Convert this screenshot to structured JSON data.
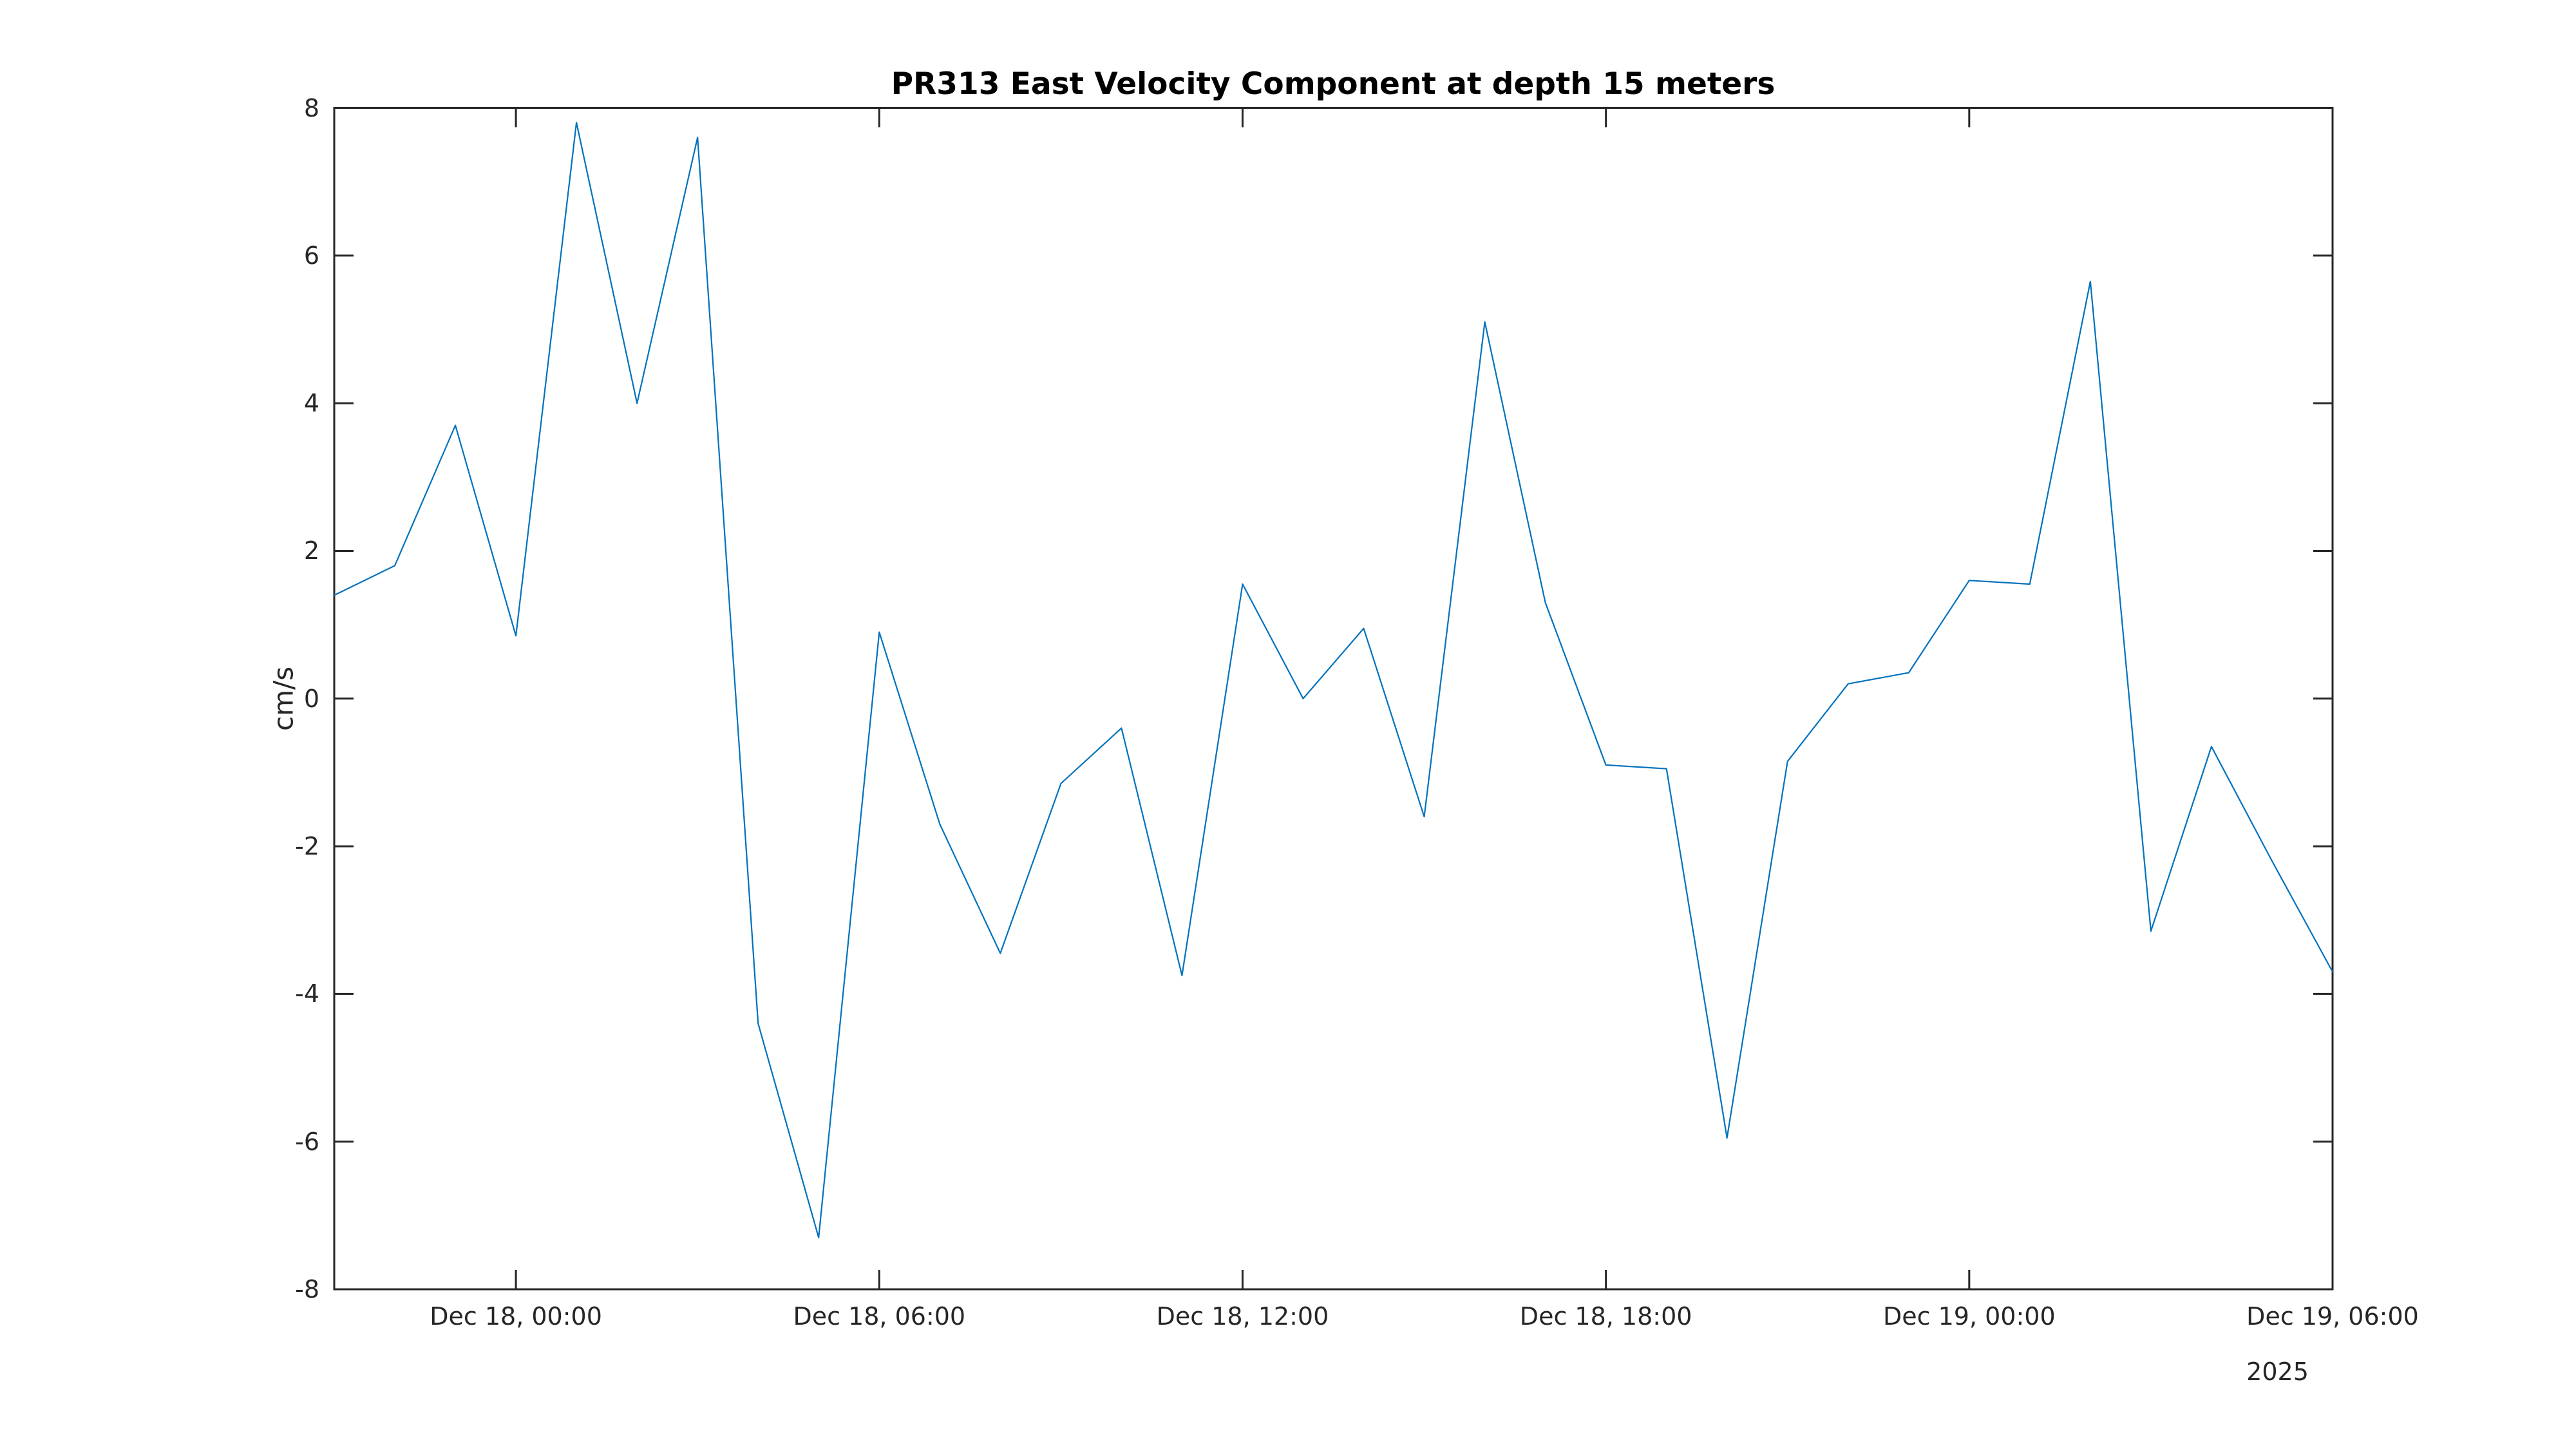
{
  "chart_data": {
    "type": "line",
    "title": "PR313 East Velocity Component at depth 15 meters",
    "ylabel": "cm/s",
    "ylim": [
      -8,
      8
    ],
    "yticks": [
      8,
      6,
      4,
      2,
      0,
      -2,
      -4,
      -6,
      -8
    ],
    "ytick_labels": [
      "8",
      "6",
      "4",
      "2",
      "0",
      "-2",
      "-4",
      "-6",
      "-8"
    ],
    "xtick_indices": [
      3,
      9,
      15,
      21,
      27,
      33
    ],
    "xtick_labels": [
      "Dec 18, 00:00",
      "Dec 18, 06:00",
      "Dec 18, 12:00",
      "Dec 18, 18:00",
      "Dec 19, 00:00",
      "Dec 19, 06:00"
    ],
    "x_year_label": "2025",
    "grid": false,
    "legend": "none",
    "line_color": "#0072BD",
    "axis_color": "#262626",
    "x": [
      "Dec 17, 21:00",
      "Dec 17, 22:00",
      "Dec 17, 23:00",
      "Dec 18, 00:00",
      "Dec 18, 01:00",
      "Dec 18, 02:00",
      "Dec 18, 03:00",
      "Dec 18, 04:00",
      "Dec 18, 05:00",
      "Dec 18, 06:00",
      "Dec 18, 07:00",
      "Dec 18, 08:00",
      "Dec 18, 09:00",
      "Dec 18, 10:00",
      "Dec 18, 11:00",
      "Dec 18, 12:00",
      "Dec 18, 13:00",
      "Dec 18, 14:00",
      "Dec 18, 15:00",
      "Dec 18, 16:00",
      "Dec 18, 17:00",
      "Dec 18, 18:00",
      "Dec 18, 19:00",
      "Dec 18, 20:00",
      "Dec 18, 21:00",
      "Dec 18, 22:00",
      "Dec 18, 23:00",
      "Dec 19, 00:00",
      "Dec 19, 01:00",
      "Dec 19, 02:00",
      "Dec 19, 03:00",
      "Dec 19, 04:00",
      "Dec 19, 05:00",
      "Dec 19, 06:00"
    ],
    "values": [
      1.4,
      1.8,
      3.7,
      0.85,
      7.8,
      4.0,
      7.6,
      -4.4,
      -7.3,
      0.9,
      -1.7,
      -3.45,
      -1.15,
      -0.4,
      -3.75,
      1.55,
      0.0,
      0.95,
      -1.6,
      5.1,
      1.3,
      -0.9,
      -0.95,
      -5.95,
      -0.85,
      0.2,
      0.35,
      1.6,
      1.55,
      5.65,
      -3.15,
      -0.65,
      -2.2,
      -3.7
    ]
  }
}
